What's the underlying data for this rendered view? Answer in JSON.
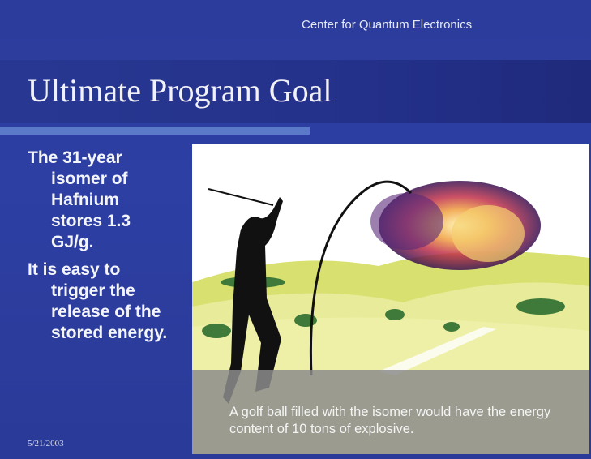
{
  "header": {
    "organization": "Center for Quantum Electronics",
    "title": "Ultimate Program Goal"
  },
  "bullets": [
    "The 31-year isomer of Hafnium stores 1.3 GJ/g.",
    "It is easy to trigger the release of the stored energy."
  ],
  "figure": {
    "caption": "A golf ball filled with the isomer would have the energy content of 10 tons of explosive."
  },
  "footer": {
    "date": "5/21/2003"
  }
}
